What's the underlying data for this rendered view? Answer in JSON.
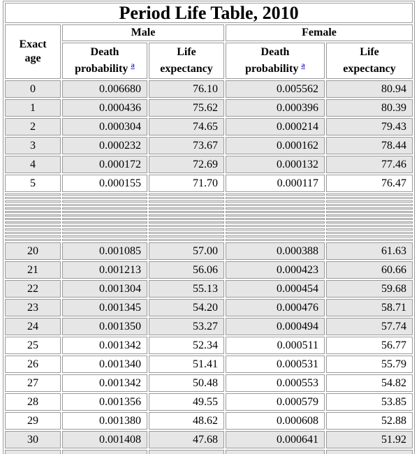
{
  "title": "Period Life Table, 2010",
  "headers": {
    "male": "Male",
    "female": "Female",
    "age_line1": "Exact",
    "age_line2": "age",
    "death_line1": "Death",
    "death_line2": "probability",
    "footnote_marker": "a",
    "life_line1": "Life",
    "life_line2": "expectancy"
  },
  "colors": {
    "shaded_row": "#e6e6e6",
    "plain_row": "#ffffff",
    "border": "#9a9a9a",
    "footnote_link": "#3333cc"
  },
  "chart_data": {
    "type": "table",
    "title": "Period Life Table, 2010",
    "column_groups": [
      "Male",
      "Female"
    ],
    "columns": [
      "Exact age",
      "Death probability",
      "Life expectancy",
      "Death probability",
      "Life expectancy"
    ],
    "rows_top": [
      {
        "age": "0",
        "m_death": "0.006680",
        "m_life": "76.10",
        "f_death": "0.005562",
        "f_life": "80.94"
      },
      {
        "age": "1",
        "m_death": "0.000436",
        "m_life": "75.62",
        "f_death": "0.000396",
        "f_life": "80.39"
      },
      {
        "age": "2",
        "m_death": "0.000304",
        "m_life": "74.65",
        "f_death": "0.000214",
        "f_life": "79.43"
      },
      {
        "age": "3",
        "m_death": "0.000232",
        "m_life": "73.67",
        "f_death": "0.000162",
        "f_life": "78.44"
      },
      {
        "age": "4",
        "m_death": "0.000172",
        "m_life": "72.69",
        "f_death": "0.000132",
        "f_life": "77.46"
      },
      {
        "age": "5",
        "m_death": "0.000155",
        "m_life": "71.70",
        "f_death": "0.000117",
        "f_life": "76.47"
      }
    ],
    "collapsed_rows": {
      "count": 14
    },
    "rows_bottom": [
      {
        "age": "20",
        "m_death": "0.001085",
        "m_life": "57.00",
        "f_death": "0.000388",
        "f_life": "61.63"
      },
      {
        "age": "21",
        "m_death": "0.001213",
        "m_life": "56.06",
        "f_death": "0.000423",
        "f_life": "60.66"
      },
      {
        "age": "22",
        "m_death": "0.001304",
        "m_life": "55.13",
        "f_death": "0.000454",
        "f_life": "59.68"
      },
      {
        "age": "23",
        "m_death": "0.001345",
        "m_life": "54.20",
        "f_death": "0.000476",
        "f_life": "58.71"
      },
      {
        "age": "24",
        "m_death": "0.001350",
        "m_life": "53.27",
        "f_death": "0.000494",
        "f_life": "57.74"
      },
      {
        "age": "25",
        "m_death": "0.001342",
        "m_life": "52.34",
        "f_death": "0.000511",
        "f_life": "56.77"
      },
      {
        "age": "26",
        "m_death": "0.001340",
        "m_life": "51.41",
        "f_death": "0.000531",
        "f_life": "55.79"
      },
      {
        "age": "27",
        "m_death": "0.001342",
        "m_life": "50.48",
        "f_death": "0.000553",
        "f_life": "54.82"
      },
      {
        "age": "28",
        "m_death": "0.001356",
        "m_life": "49.55",
        "f_death": "0.000579",
        "f_life": "53.85"
      },
      {
        "age": "29",
        "m_death": "0.001380",
        "m_life": "48.62",
        "f_death": "0.000608",
        "f_life": "52.88"
      },
      {
        "age": "30",
        "m_death": "0.001408",
        "m_life": "47.68",
        "f_death": "0.000641",
        "f_life": "51.92"
      }
    ]
  }
}
